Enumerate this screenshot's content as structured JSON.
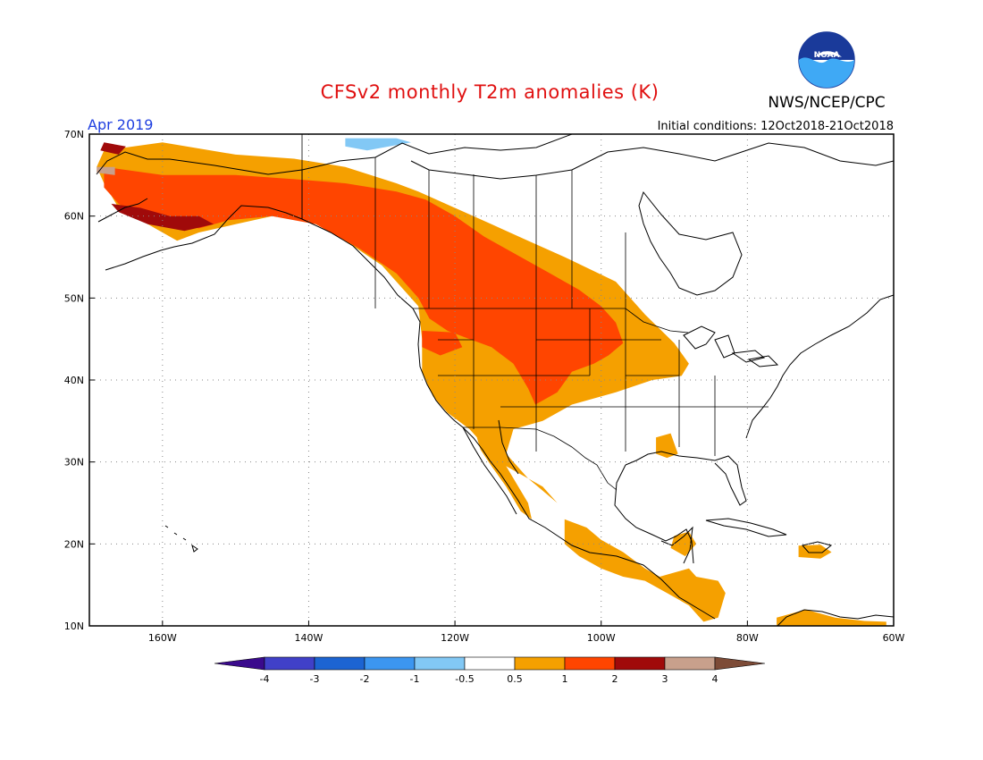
{
  "title": "CFSv2 monthly T2m anomalies (K)",
  "subtitle_left": "Apr 2019",
  "subtitle_right": "Initial conditions: 12Oct2018-21Oct2018",
  "agency": "NWS/NCEP/CPC",
  "logo_text": "NOAA",
  "map": {
    "lon_range": [
      -170,
      -60
    ],
    "lat_range": [
      10,
      70
    ],
    "lat_ticks": [
      {
        "value": 70,
        "label": "70N"
      },
      {
        "value": 60,
        "label": "60N"
      },
      {
        "value": 50,
        "label": "50N"
      },
      {
        "value": 40,
        "label": "40N"
      },
      {
        "value": 30,
        "label": "30N"
      },
      {
        "value": 20,
        "label": "20N"
      },
      {
        "value": 10,
        "label": "10N"
      }
    ],
    "lon_ticks": [
      {
        "value": -160,
        "label": "160W"
      },
      {
        "value": -140,
        "label": "140W"
      },
      {
        "value": -120,
        "label": "120W"
      },
      {
        "value": -100,
        "label": "100W"
      },
      {
        "value": -80,
        "label": "80W"
      },
      {
        "value": -60,
        "label": "60W"
      }
    ]
  },
  "colorbar": {
    "labels": [
      "-4",
      "-3",
      "-2",
      "-1",
      "-0.5",
      "0.5",
      "1",
      "2",
      "3",
      "4"
    ],
    "colors": [
      "#3a0a8c",
      "#4040c8",
      "#1c64d2",
      "#3c96f0",
      "#82c8f5",
      "#ffffff",
      "#f5a000",
      "#ff4500",
      "#a00a0a",
      "#c8a08c",
      "#7d4b37"
    ]
  },
  "anomaly_colors": {
    "c05": "#f5a000",
    "c1": "#ff4500",
    "c2": "#a00a0a",
    "c3": "#c8a08c",
    "neg": "#82c8f5",
    "neg1": "#3c96f0"
  },
  "anomaly_regions": [
    {
      "name": "alaska-yukon-warm",
      "level": "c05",
      "points": [
        [
          -168,
          68
        ],
        [
          -160,
          69
        ],
        [
          -150,
          67.5
        ],
        [
          -142,
          67
        ],
        [
          -135,
          66
        ],
        [
          -128,
          64
        ],
        [
          -125,
          63
        ],
        [
          -120,
          61
        ],
        [
          -115,
          59
        ],
        [
          -110,
          57
        ],
        [
          -105,
          55
        ],
        [
          -98,
          52
        ],
        [
          -94,
          48
        ],
        [
          -90,
          44.5
        ],
        [
          -88,
          42
        ],
        [
          -89,
          40.5
        ],
        [
          -93,
          40
        ],
        [
          -98,
          38.5
        ],
        [
          -104,
          37
        ],
        [
          -108,
          35
        ],
        [
          -112,
          34
        ],
        [
          -113,
          31
        ],
        [
          -110,
          28
        ],
        [
          -106,
          25
        ],
        [
          -108,
          27
        ],
        [
          -114,
          30
        ],
        [
          -116,
          32
        ],
        [
          -118,
          34
        ],
        [
          -121,
          36
        ],
        [
          -123,
          38
        ],
        [
          -124.5,
          41
        ],
        [
          -124.5,
          45
        ],
        [
          -125,
          49
        ],
        [
          -130,
          54
        ],
        [
          -135,
          57
        ],
        [
          -140,
          59.5
        ],
        [
          -145,
          60
        ],
        [
          -150,
          59
        ],
        [
          -155,
          58
        ],
        [
          -158,
          57
        ],
        [
          -162,
          59
        ],
        [
          -166,
          61
        ],
        [
          -168,
          64
        ],
        [
          -169,
          66
        ]
      ]
    },
    {
      "name": "baja-warm",
      "level": "c05",
      "points": [
        [
          -117,
          33
        ],
        [
          -114,
          31
        ],
        [
          -112,
          28
        ],
        [
          -110,
          25
        ],
        [
          -109.5,
          23
        ],
        [
          -111,
          24
        ],
        [
          -113,
          27
        ],
        [
          -115,
          29.5
        ],
        [
          -116.5,
          31.5
        ]
      ]
    },
    {
      "name": "mexico-central-america-warm",
      "level": "c05",
      "points": [
        [
          -105,
          23
        ],
        [
          -102,
          22
        ],
        [
          -100,
          20.5
        ],
        [
          -97,
          19
        ],
        [
          -94,
          17
        ],
        [
          -92,
          16
        ],
        [
          -90,
          16.5
        ],
        [
          -88,
          17
        ],
        [
          -87,
          16
        ],
        [
          -84,
          15.5
        ],
        [
          -83,
          14
        ],
        [
          -84,
          11
        ],
        [
          -86,
          10.5
        ],
        [
          -88,
          12.5
        ],
        [
          -91,
          14
        ],
        [
          -94,
          15.5
        ],
        [
          -97,
          16
        ],
        [
          -100,
          17
        ],
        [
          -103,
          18.5
        ],
        [
          -105,
          20
        ]
      ]
    },
    {
      "name": "yucatan-warm",
      "level": "c05",
      "points": [
        [
          -90,
          21
        ],
        [
          -88,
          21.5
        ],
        [
          -87,
          20
        ],
        [
          -88.5,
          18.5
        ],
        [
          -90.5,
          19.5
        ]
      ]
    },
    {
      "name": "caribbean-warm",
      "level": "c05",
      "points": [
        [
          -73,
          19.8
        ],
        [
          -70,
          19.9
        ],
        [
          -68.5,
          19
        ],
        [
          -70,
          18.2
        ],
        [
          -73,
          18.4
        ]
      ]
    },
    {
      "name": "venezuela-warm",
      "level": "c05",
      "points": [
        [
          -76,
          11
        ],
        [
          -72,
          12
        ],
        [
          -68,
          11
        ],
        [
          -64,
          10.6
        ],
        [
          -61,
          10.5
        ],
        [
          -61,
          10
        ],
        [
          -76,
          10
        ]
      ]
    },
    {
      "name": "southeast-us-warm",
      "level": "c05",
      "points": [
        [
          -92.5,
          33
        ],
        [
          -90.5,
          33.5
        ],
        [
          -89.5,
          31
        ],
        [
          -91,
          30.5
        ],
        [
          -92.5,
          31
        ]
      ]
    },
    {
      "name": "alaska-yukon-hot",
      "level": "c1",
      "points": [
        [
          -168,
          66
        ],
        [
          -160,
          65
        ],
        [
          -150,
          65
        ],
        [
          -142,
          64.5
        ],
        [
          -135,
          64
        ],
        [
          -128,
          63
        ],
        [
          -124,
          62
        ],
        [
          -120,
          60
        ],
        [
          -116,
          57.5
        ],
        [
          -112,
          55.5
        ],
        [
          -107,
          53
        ],
        [
          -103,
          51
        ],
        [
          -100,
          49
        ],
        [
          -98,
          47
        ],
        [
          -97,
          44.5
        ],
        [
          -99,
          43
        ],
        [
          -101,
          42
        ],
        [
          -104,
          41
        ],
        [
          -106,
          38.5
        ],
        [
          -109,
          37
        ],
        [
          -110,
          39
        ],
        [
          -112,
          42
        ],
        [
          -115,
          44
        ],
        [
          -118,
          45
        ],
        [
          -121,
          46
        ],
        [
          -123.5,
          47.5
        ],
        [
          -125,
          50
        ],
        [
          -128,
          53
        ],
        [
          -133,
          56
        ],
        [
          -139,
          59
        ],
        [
          -145,
          60
        ],
        [
          -151,
          59.5
        ],
        [
          -155,
          58.5
        ],
        [
          -159,
          59
        ],
        [
          -163,
          60
        ],
        [
          -166,
          61.5
        ],
        [
          -168,
          63.5
        ]
      ]
    },
    {
      "name": "oregon-hot",
      "level": "c1",
      "points": [
        [
          -124.5,
          46
        ],
        [
          -120,
          45.8
        ],
        [
          -119,
          44
        ],
        [
          -122,
          43
        ],
        [
          -124.5,
          44
        ]
      ]
    },
    {
      "name": "alaska-extreme",
      "level": "c2",
      "points": [
        [
          -167,
          61.5
        ],
        [
          -163,
          61
        ],
        [
          -159,
          60
        ],
        [
          -155,
          60
        ],
        [
          -153,
          59
        ],
        [
          -157,
          58.2
        ],
        [
          -162,
          59
        ],
        [
          -166,
          60.5
        ]
      ]
    },
    {
      "name": "bering-extreme",
      "level": "c2",
      "points": [
        [
          -168,
          69
        ],
        [
          -165,
          68.5
        ],
        [
          -166,
          67.5
        ],
        [
          -168.5,
          68
        ]
      ]
    },
    {
      "name": "seward-extreme",
      "level": "c3",
      "points": [
        [
          -169,
          66
        ],
        [
          -166.5,
          66
        ],
        [
          -166.5,
          65
        ],
        [
          -169,
          65.3
        ]
      ]
    },
    {
      "name": "arctic-cool",
      "level": "neg",
      "points": [
        [
          -135,
          69.5
        ],
        [
          -128,
          69.5
        ],
        [
          -126,
          69
        ],
        [
          -132,
          68
        ],
        [
          -135,
          68.5
        ]
      ]
    }
  ]
}
